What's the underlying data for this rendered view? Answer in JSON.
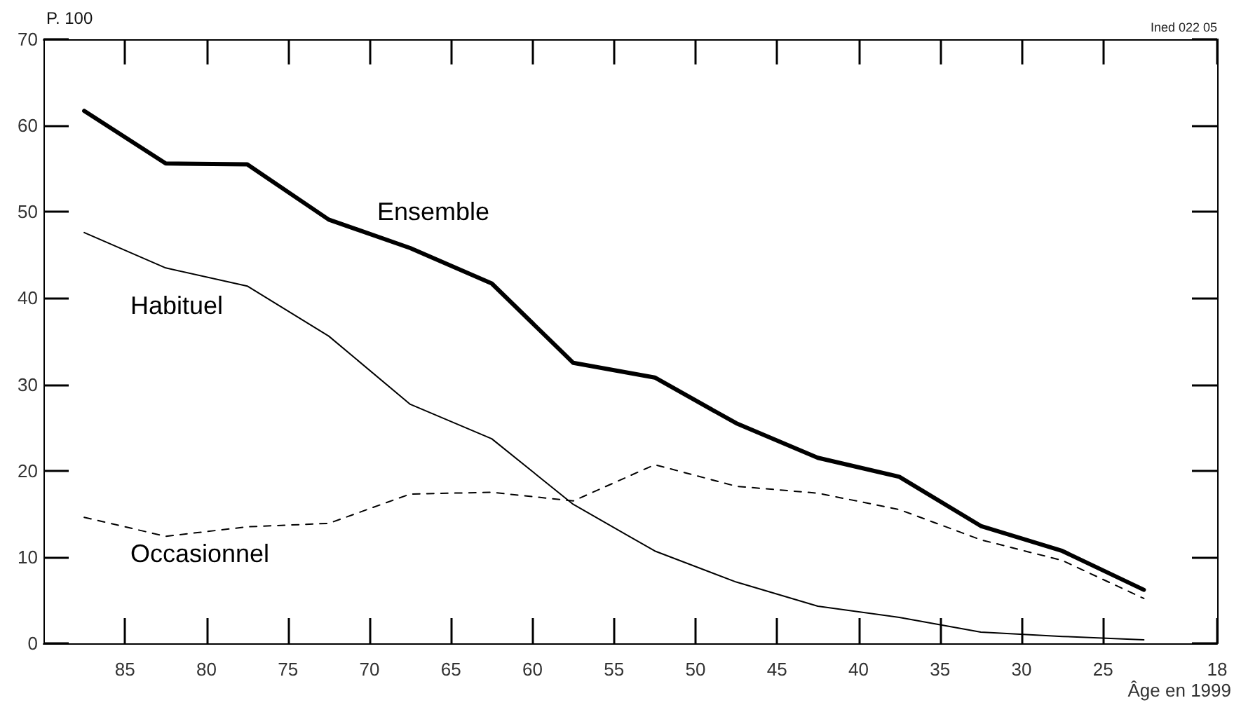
{
  "chart_data": {
    "type": "line",
    "ylabel": "P. 100",
    "xlabel": "Âge en 1999",
    "annotations": [
      "Ined 022 05"
    ],
    "x": [
      87.5,
      82.5,
      77.5,
      72.5,
      67.5,
      62.5,
      57.5,
      52.5,
      47.5,
      42.5,
      37.5,
      32.5,
      27.5,
      22.5
    ],
    "series": [
      {
        "name": "Ensemble",
        "color": "#000000",
        "line_style": "solid",
        "values": [
          61.7,
          55.6,
          55.5,
          49.1,
          45.8,
          41.7,
          32.5,
          30.8,
          25.5,
          21.5,
          19.3,
          13.6,
          10.7,
          6.2
        ]
      },
      {
        "name": "Habituel",
        "color": "#000000",
        "line_style": "solid",
        "values": [
          47.6,
          43.5,
          41.4,
          35.6,
          27.7,
          23.7,
          16.1,
          10.7,
          7.1,
          4.3,
          3.0,
          1.3,
          0.8,
          0.4
        ]
      },
      {
        "name": "Occasionnel",
        "color": "#000000",
        "line_style": "dashed",
        "values": [
          14.6,
          12.4,
          13.5,
          13.9,
          17.3,
          17.5,
          16.5,
          20.7,
          18.2,
          17.4,
          15.5,
          12.0,
          9.6,
          5.2
        ]
      }
    ],
    "xlim": [
      90,
      18
    ],
    "xticks": [
      85,
      80,
      75,
      70,
      65,
      60,
      55,
      50,
      45,
      40,
      35,
      30,
      25,
      18
    ],
    "ylim": [
      0,
      70
    ],
    "yticks": [
      0,
      10,
      20,
      30,
      40,
      50,
      60,
      70
    ],
    "grid": false,
    "legend": false,
    "marker": "none"
  }
}
